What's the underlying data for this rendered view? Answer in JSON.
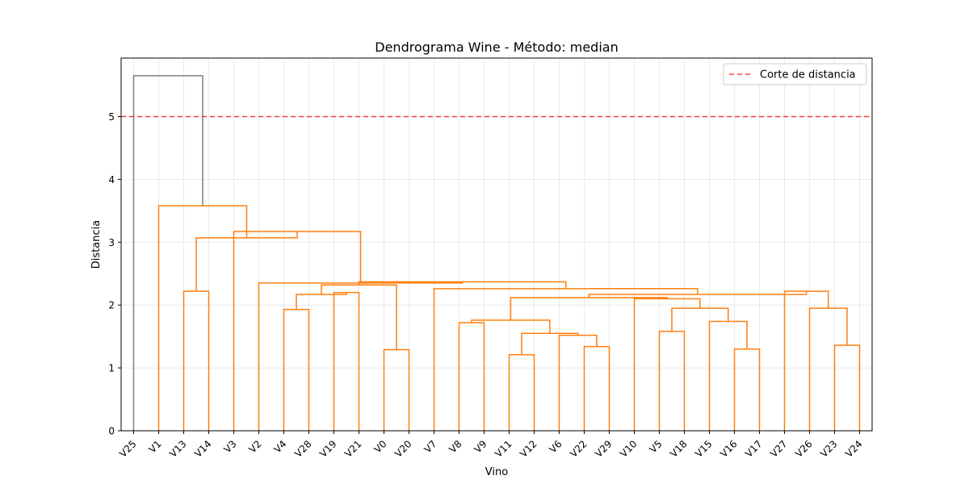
{
  "chart_data": {
    "type": "dendrogram",
    "title": "Dendrograma Wine - Método: median",
    "xlabel": "Vino",
    "ylabel": "Distancia",
    "ylim": [
      0,
      5.93
    ],
    "yticks": [
      0,
      1,
      2,
      3,
      4,
      5
    ],
    "grid": true,
    "leaf_order": [
      "V25",
      "V1",
      "V13",
      "V14",
      "V3",
      "V2",
      "V4",
      "V28",
      "V19",
      "V21",
      "V0",
      "V20",
      "V7",
      "V8",
      "V9",
      "V11",
      "V12",
      "V6",
      "V22",
      "V29",
      "V10",
      "V5",
      "V18",
      "V15",
      "V16",
      "V17",
      "V27",
      "V26",
      "V23",
      "V24"
    ],
    "merges": [
      {
        "a": "V11",
        "b": "V12",
        "height": 1.21
      },
      {
        "a": "V0",
        "b": "V20",
        "height": 1.29
      },
      {
        "a": "V16",
        "b": "V17",
        "height": 1.3
      },
      {
        "a": "V22",
        "b": "V29",
        "height": 1.34
      },
      {
        "a": "V23",
        "b": "V24",
        "height": 1.36
      },
      {
        "a": "V6",
        "b": "m3",
        "height": 1.52
      },
      {
        "a": "m0",
        "b": "m5",
        "height": 1.55
      },
      {
        "a": "V5",
        "b": "V18",
        "height": 1.58
      },
      {
        "a": "V8",
        "b": "V9",
        "height": 1.72
      },
      {
        "a": "V15",
        "b": "m2",
        "height": 1.74
      },
      {
        "a": "m8",
        "b": "m6",
        "height": 1.76
      },
      {
        "a": "V4",
        "b": "V28",
        "height": 1.93
      },
      {
        "a": "m7",
        "b": "m9",
        "height": 1.95
      },
      {
        "a": "V26",
        "b": "m4",
        "height": 1.95
      },
      {
        "a": "V10",
        "b": "m12",
        "height": 2.1
      },
      {
        "a": "m10",
        "b": "m14",
        "height": 2.12
      },
      {
        "a": "V19",
        "b": "V21",
        "height": 2.2
      },
      {
        "a": "V13",
        "b": "V14",
        "height": 2.22
      },
      {
        "a": "V27",
        "b": "m13",
        "height": 2.22
      },
      {
        "a": "m11",
        "b": "m16",
        "height": 2.17
      },
      {
        "a": "m15",
        "b": "m18",
        "height": 2.17
      },
      {
        "a": "V7",
        "b": "m20",
        "height": 2.26
      },
      {
        "a": "m19",
        "b": "m1",
        "height": 2.32
      },
      {
        "a": "m22",
        "b": "m21",
        "height": 2.37
      },
      {
        "a": "V2",
        "b": "m23",
        "height": 2.35
      },
      {
        "a": "V3",
        "b": "m24",
        "height": 3.17
      },
      {
        "a": "m17",
        "b": "m25",
        "height": 3.07
      },
      {
        "a": "V1",
        "b": "m26",
        "height": 3.58
      },
      {
        "a": "V25",
        "b": "m27",
        "height": 5.65
      }
    ],
    "threshold": {
      "value": 5.0,
      "label": "Corte de distancia",
      "color": "#ff0000"
    },
    "colors": {
      "cluster": "#ff7f0e",
      "above_threshold": "#808080",
      "grid": "#e5e5e5"
    },
    "legend": {
      "position": "top-right",
      "entries": [
        "Corte de distancia"
      ]
    }
  }
}
